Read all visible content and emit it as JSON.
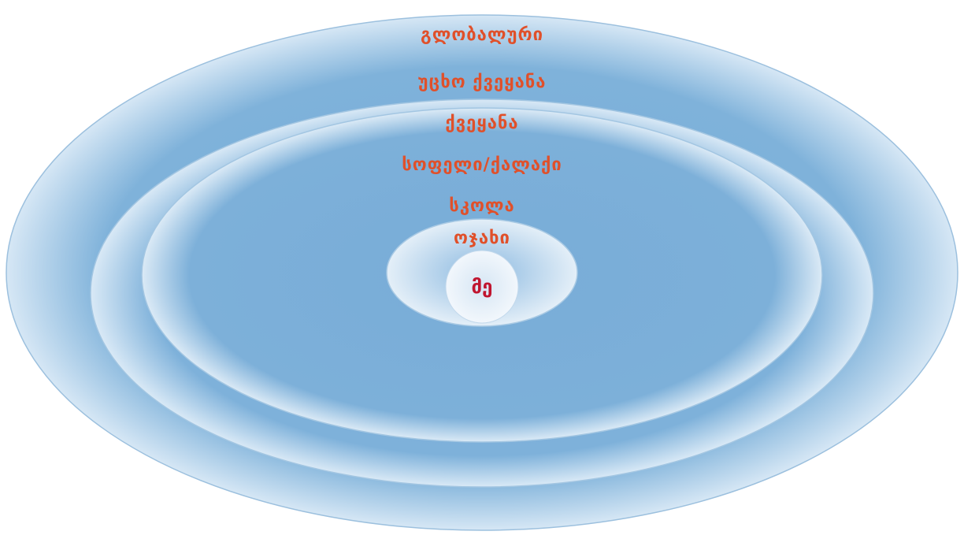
{
  "diagram": {
    "rings": [
      {
        "id": "global",
        "label": "გლობალური"
      },
      {
        "id": "foreign-country",
        "label": "უცხო ქვეყანა"
      },
      {
        "id": "country",
        "label": "ქვეყანა"
      },
      {
        "id": "village-city",
        "label": "სოფელი/ქალაქი"
      },
      {
        "id": "school",
        "label": "სკოლა"
      },
      {
        "id": "family",
        "label": "ოჯახი"
      }
    ],
    "center": {
      "label": "მე"
    }
  },
  "colors": {
    "ring_label": "#e0502a",
    "center_label": "#c0152f",
    "ellipse_core": "#78acd8",
    "ellipse_edge": "#e2eef8",
    "ellipse_stroke": "#9cc0de"
  }
}
